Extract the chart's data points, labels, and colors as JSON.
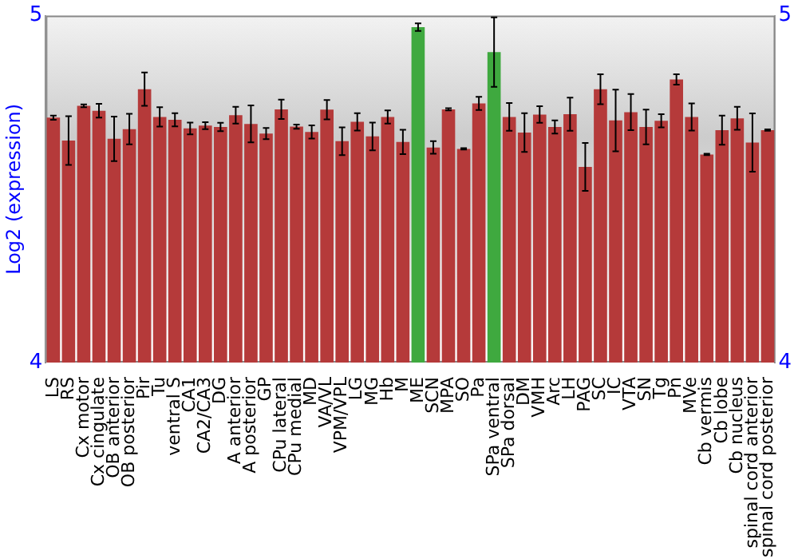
{
  "chart_data": {
    "type": "bar",
    "ylabel": "Log2 (expression)",
    "categories": [
      "LS",
      "RS",
      "Cx motor",
      "Cx cingulate",
      "OB anterior",
      "OB posterior",
      "Pir",
      "Tu",
      "ventral S",
      "CA1",
      "CA2/CA3",
      "DG",
      "A anterior",
      "A posterior",
      "GP",
      "CPu lateral",
      "CPu medial",
      "MD",
      "VA/VL",
      "VPM/VPL",
      "LG",
      "MG",
      "Hb",
      "M",
      "ME",
      "SCN",
      "MPA",
      "SO",
      "Pa",
      "SPa ventral",
      "SPa dorsal",
      "DM",
      "VMH",
      "Arc",
      "LH",
      "PAG",
      "SC",
      "IC",
      "VTA",
      "SN",
      "Tg",
      "Pn",
      "MVe",
      "Cb vermis",
      "Cb lobe",
      "Cb nucleus",
      "spinal cord anterior",
      "spinal cord posterior"
    ],
    "values": [
      4.706,
      4.64,
      4.74,
      4.726,
      4.645,
      4.673,
      4.788,
      4.708,
      4.7,
      4.675,
      4.683,
      4.679,
      4.713,
      4.688,
      4.66,
      4.73,
      4.68,
      4.665,
      4.729,
      4.638,
      4.694,
      4.652,
      4.708,
      4.636,
      4.967,
      4.62,
      4.73,
      4.616,
      4.747,
      4.895,
      4.708,
      4.663,
      4.715,
      4.679,
      4.716,
      4.564,
      4.788,
      4.698,
      4.722,
      4.679,
      4.697,
      4.816,
      4.708,
      4.6,
      4.67,
      4.704,
      4.634,
      4.67
    ],
    "errors": [
      0.006,
      0.07,
      0.004,
      0.02,
      0.064,
      0.044,
      0.048,
      0.028,
      0.019,
      0.017,
      0.01,
      0.012,
      0.024,
      0.053,
      0.016,
      0.028,
      0.006,
      0.019,
      0.028,
      0.04,
      0.025,
      0.04,
      0.019,
      0.035,
      0.011,
      0.018,
      0.003,
      0.002,
      0.019,
      0.1,
      0.04,
      0.056,
      0.024,
      0.019,
      0.048,
      0.069,
      0.043,
      0.089,
      0.052,
      0.05,
      0.019,
      0.015,
      0.039,
      0.002,
      0.042,
      0.033,
      0.084,
      0.002
    ],
    "colors": [
      "#b53a3a",
      "#b53a3a",
      "#b53a3a",
      "#b53a3a",
      "#b53a3a",
      "#b53a3a",
      "#b53a3a",
      "#b53a3a",
      "#b53a3a",
      "#b53a3a",
      "#b53a3a",
      "#b53a3a",
      "#b53a3a",
      "#b53a3a",
      "#b53a3a",
      "#b53a3a",
      "#b53a3a",
      "#b53a3a",
      "#b53a3a",
      "#b53a3a",
      "#b53a3a",
      "#b53a3a",
      "#b53a3a",
      "#b53a3a",
      "#3fa93f",
      "#b53a3a",
      "#b53a3a",
      "#b53a3a",
      "#b53a3a",
      "#3fa93f",
      "#b53a3a",
      "#b53a3a",
      "#b53a3a",
      "#b53a3a",
      "#b53a3a",
      "#b53a3a",
      "#b53a3a",
      "#b53a3a",
      "#b53a3a",
      "#b53a3a",
      "#b53a3a",
      "#b53a3a",
      "#b53a3a",
      "#b53a3a",
      "#b53a3a",
      "#b53a3a",
      "#b53a3a",
      "#b53a3a"
    ],
    "ylim": [
      4,
      5
    ],
    "yticks": [
      4,
      5
    ],
    "y2lim": [
      4,
      5
    ],
    "y2ticks": [
      4,
      5
    ],
    "grid": false,
    "legend": false
  }
}
